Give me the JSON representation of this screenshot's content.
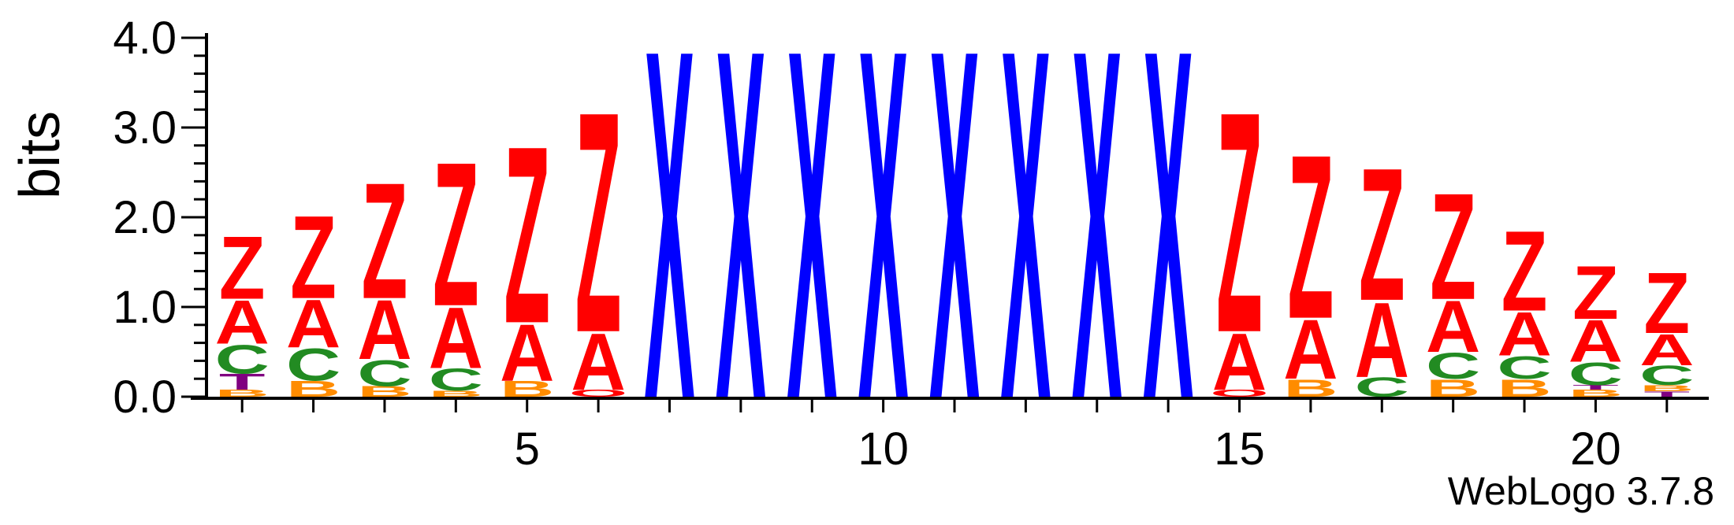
{
  "chart_data": {
    "type": "sequence-logo",
    "ylabel": "bits",
    "xlabel": "",
    "ylim": [
      0,
      4.0
    ],
    "y_ticks": [
      "0.0",
      "1.0",
      "2.0",
      "3.0",
      "4.0"
    ],
    "x_ticks": [
      "5",
      "10",
      "15",
      "20"
    ],
    "positions": [
      1,
      2,
      3,
      4,
      5,
      6,
      7,
      8,
      9,
      10,
      11,
      12,
      13,
      14,
      15,
      16,
      17,
      18,
      19,
      20,
      21
    ],
    "colors": {
      "Z": "#ff0000",
      "A": "#ff0000",
      "X": "#0000ff",
      "C": "#228b22",
      "B": "#ff8c00",
      "T": "#800080",
      "Q": "#ff0000"
    },
    "stacks": [
      [
        {
          "letter": "B",
          "height": 0.08
        },
        {
          "letter": "T",
          "height": 0.18
        },
        {
          "letter": "C",
          "height": 0.33
        },
        {
          "letter": "A",
          "height": 0.5
        },
        {
          "letter": "Z",
          "height": 0.72
        }
      ],
      [
        {
          "letter": "B",
          "height": 0.18
        },
        {
          "letter": "C",
          "height": 0.37
        },
        {
          "letter": "A",
          "height": 0.55
        },
        {
          "letter": "Z",
          "height": 0.95
        }
      ],
      [
        {
          "letter": "B",
          "height": 0.12
        },
        {
          "letter": "C",
          "height": 0.3
        },
        {
          "letter": "A",
          "height": 0.68
        },
        {
          "letter": "Z",
          "height": 1.33
        }
      ],
      [
        {
          "letter": "B",
          "height": 0.07
        },
        {
          "letter": "C",
          "height": 0.25
        },
        {
          "letter": "A",
          "height": 0.7
        },
        {
          "letter": "Z",
          "height": 1.65
        }
      ],
      [
        {
          "letter": "B",
          "height": 0.18
        },
        {
          "letter": "A",
          "height": 0.65
        },
        {
          "letter": "Z",
          "height": 2.03
        }
      ],
      [
        {
          "letter": "Q",
          "height": 0.08
        },
        {
          "letter": "A",
          "height": 0.65
        },
        {
          "letter": "Z",
          "height": 2.53
        }
      ],
      [
        {
          "letter": "X",
          "height": 4.0
        }
      ],
      [
        {
          "letter": "X",
          "height": 4.0
        }
      ],
      [
        {
          "letter": "X",
          "height": 4.0
        }
      ],
      [
        {
          "letter": "X",
          "height": 4.0
        }
      ],
      [
        {
          "letter": "X",
          "height": 4.0
        }
      ],
      [
        {
          "letter": "X",
          "height": 4.0
        }
      ],
      [
        {
          "letter": "X",
          "height": 4.0
        }
      ],
      [
        {
          "letter": "X",
          "height": 4.0
        }
      ],
      [
        {
          "letter": "Q",
          "height": 0.08
        },
        {
          "letter": "A",
          "height": 0.65
        },
        {
          "letter": "Z",
          "height": 2.53
        }
      ],
      [
        {
          "letter": "B",
          "height": 0.2
        },
        {
          "letter": "A",
          "height": 0.68
        },
        {
          "letter": "Z",
          "height": 1.88
        }
      ],
      [
        {
          "letter": "C",
          "height": 0.22
        },
        {
          "letter": "A",
          "height": 0.86
        },
        {
          "letter": "Z",
          "height": 1.52
        }
      ],
      [
        {
          "letter": "B",
          "height": 0.2
        },
        {
          "letter": "C",
          "height": 0.3
        },
        {
          "letter": "A",
          "height": 0.59
        },
        {
          "letter": "Z",
          "height": 1.22
        }
      ],
      [
        {
          "letter": "B",
          "height": 0.2
        },
        {
          "letter": "C",
          "height": 0.26
        },
        {
          "letter": "A",
          "height": 0.5
        },
        {
          "letter": "Z",
          "height": 0.92
        }
      ],
      [
        {
          "letter": "B",
          "height": 0.08
        },
        {
          "letter": "T",
          "height": 0.05
        },
        {
          "letter": "C",
          "height": 0.26
        },
        {
          "letter": "A",
          "height": 0.48
        },
        {
          "letter": "Z",
          "height": 0.61
        }
      ],
      [
        {
          "letter": "T",
          "height": 0.06
        },
        {
          "letter": "B",
          "height": 0.07
        },
        {
          "letter": "C",
          "height": 0.22
        },
        {
          "letter": "A",
          "height": 0.36
        },
        {
          "letter": "Z",
          "height": 0.7
        }
      ]
    ]
  },
  "footer": {
    "credit": "WebLogo 3.7.8"
  }
}
